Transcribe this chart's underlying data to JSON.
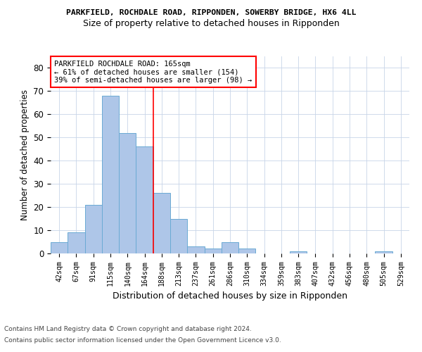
{
  "title1": "PARKFIELD, ROCHDALE ROAD, RIPPONDEN, SOWERBY BRIDGE, HX6 4LL",
  "title2": "Size of property relative to detached houses in Ripponden",
  "xlabel": "Distribution of detached houses by size in Ripponden",
  "ylabel": "Number of detached properties",
  "bar_color": "#aec6e8",
  "bar_edge_color": "#6aaad4",
  "categories": [
    "42sqm",
    "67sqm",
    "91sqm",
    "115sqm",
    "140sqm",
    "164sqm",
    "188sqm",
    "213sqm",
    "237sqm",
    "261sqm",
    "286sqm",
    "310sqm",
    "334sqm",
    "359sqm",
    "383sqm",
    "407sqm",
    "432sqm",
    "456sqm",
    "480sqm",
    "505sqm",
    "529sqm"
  ],
  "values": [
    5,
    9,
    21,
    68,
    52,
    46,
    26,
    15,
    3,
    2,
    5,
    2,
    0,
    0,
    1,
    0,
    0,
    0,
    0,
    1,
    0
  ],
  "ylim": [
    0,
    85
  ],
  "yticks": [
    0,
    10,
    20,
    30,
    40,
    50,
    60,
    70,
    80
  ],
  "vline_x": 5.5,
  "annotation_line1": "PARKFIELD ROCHDALE ROAD: 165sqm",
  "annotation_line2": "← 61% of detached houses are smaller (154)",
  "annotation_line3": "39% of semi-detached houses are larger (98) →",
  "footnote1": "Contains HM Land Registry data © Crown copyright and database right 2024.",
  "footnote2": "Contains public sector information licensed under the Open Government Licence v3.0.",
  "background_color": "#ffffff",
  "grid_color": "#c8d4e8"
}
